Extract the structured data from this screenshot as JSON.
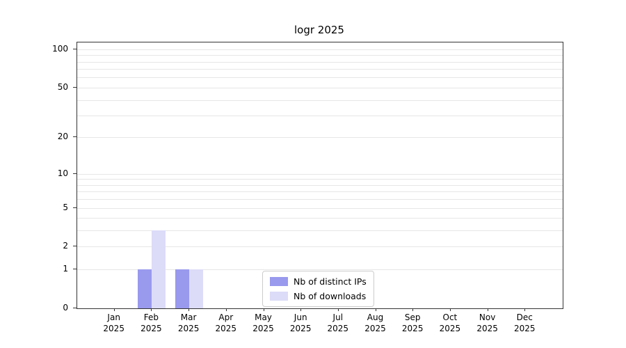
{
  "title": "logr 2025",
  "legend": [
    {
      "label": "Nb of distinct IPs",
      "color": "#9999ee"
    },
    {
      "label": "Nb of downloads",
      "color": "#dcdcf8"
    }
  ],
  "chart_data": {
    "type": "bar",
    "title": "logr 2025",
    "categories": [
      "Jan",
      "Feb",
      "Mar",
      "Apr",
      "May",
      "Jun",
      "Jul",
      "Aug",
      "Sep",
      "Oct",
      "Nov",
      "Dec"
    ],
    "year": "2025",
    "series": [
      {
        "name": "Nb of distinct IPs",
        "color": "#9999ee",
        "values": [
          0,
          1,
          1,
          0,
          0,
          0,
          0,
          0,
          0,
          0,
          0,
          0
        ]
      },
      {
        "name": "Nb of downloads",
        "color": "#dcdcf8",
        "values": [
          0,
          3,
          1,
          0,
          0,
          0,
          0,
          0,
          0,
          0,
          0,
          0
        ]
      }
    ],
    "yscale": "log10(1+x)",
    "yticks": [
      0,
      1,
      2,
      5,
      10,
      20,
      50,
      100
    ],
    "ylim": [
      0,
      113
    ],
    "gridlines": [
      1,
      2,
      3,
      4,
      5,
      6,
      7,
      8,
      9,
      10,
      20,
      30,
      40,
      50,
      60,
      70,
      80,
      90,
      100
    ],
    "grid": true,
    "legend_position": "lower center"
  }
}
